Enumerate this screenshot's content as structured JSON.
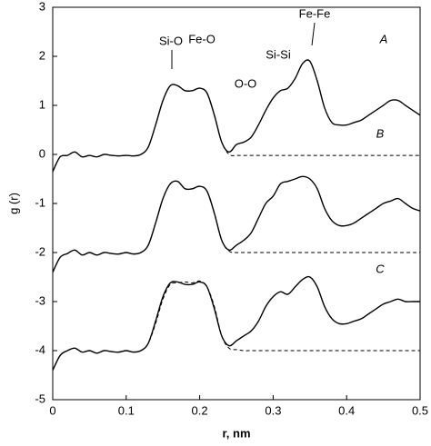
{
  "chart_data": {
    "type": "line",
    "ylabel": "g (r)",
    "xlabel": "r, nm",
    "xlim": [
      0,
      0.5
    ],
    "xticks": [
      0,
      0.1,
      0.2,
      0.3,
      0.4,
      0.5
    ],
    "ylim": [
      -5,
      3
    ],
    "yticks": [
      -5,
      -4,
      -3,
      -2,
      -1,
      0,
      1,
      2,
      3
    ],
    "annotations": [
      {
        "text": "Si-O"
      },
      {
        "text": "Fe-O"
      },
      {
        "text": "O-O"
      },
      {
        "text": "Si-Si"
      },
      {
        "text": "Fe-Fe"
      },
      {
        "text": "A"
      },
      {
        "text": "B"
      },
      {
        "text": "C"
      }
    ],
    "x": [
      0,
      0.01,
      0.02,
      0.03,
      0.04,
      0.05,
      0.06,
      0.07,
      0.08,
      0.09,
      0.1,
      0.11,
      0.12,
      0.13,
      0.14,
      0.15,
      0.16,
      0.17,
      0.18,
      0.19,
      0.2,
      0.21,
      0.22,
      0.23,
      0.24,
      0.25,
      0.26,
      0.27,
      0.28,
      0.29,
      0.3,
      0.31,
      0.32,
      0.33,
      0.34,
      0.35,
      0.36,
      0.37,
      0.38,
      0.39,
      0.4,
      0.41,
      0.42,
      0.43,
      0.44,
      0.45,
      0.46,
      0.47,
      0.48,
      0.49,
      0.5
    ],
    "series": [
      {
        "color": "#000000",
        "dashed": false,
        "values": [
          -0.35,
          -0.05,
          -0.02,
          0.05,
          -0.05,
          -0.02,
          -0.05,
          0,
          -0.02,
          -0.03,
          -0.02,
          -0.03,
          0,
          0.15,
          0.6,
          1.1,
          1.4,
          1.4,
          1.3,
          1.3,
          1.35,
          1.25,
          0.8,
          0.25,
          0.05,
          0.2,
          0.25,
          0.35,
          0.6,
          0.9,
          1.15,
          1.3,
          1.35,
          1.55,
          1.85,
          1.9,
          1.5,
          0.95,
          0.65,
          0.6,
          0.6,
          0.65,
          0.7,
          0.8,
          0.9,
          1.0,
          1.1,
          1.1,
          1.0,
          0.9,
          0.8
        ]
      },
      {
        "color": "#000000",
        "dashed": true,
        "values": [
          -0.35,
          -0.05,
          -0.02,
          0.05,
          -0.05,
          -0.02,
          -0.05,
          0,
          -0.02,
          -0.03,
          -0.02,
          -0.03,
          0,
          0.15,
          0.6,
          1.1,
          1.4,
          1.4,
          1.3,
          1.3,
          1.35,
          1.25,
          0.8,
          0.25,
          0,
          -0.02,
          -0.02,
          -0.02,
          -0.02,
          -0.02,
          -0.02,
          -0.02,
          -0.02,
          -0.02,
          -0.02,
          -0.02,
          -0.02,
          -0.02,
          -0.02,
          -0.02,
          -0.02,
          -0.02,
          -0.02,
          -0.02,
          -0.02,
          -0.02,
          -0.02,
          -0.02,
          -0.02,
          -0.02,
          -0.02
        ]
      },
      {
        "color": "#000000",
        "dashed": false,
        "values": [
          -2.4,
          -2.1,
          -2.02,
          -1.95,
          -2.05,
          -2.0,
          -2.05,
          -2.0,
          -2.02,
          -2.03,
          -2.0,
          -2.03,
          -2.0,
          -1.85,
          -1.4,
          -0.9,
          -0.6,
          -0.55,
          -0.7,
          -0.7,
          -0.65,
          -0.75,
          -1.2,
          -1.75,
          -1.95,
          -1.85,
          -1.75,
          -1.6,
          -1.3,
          -1.0,
          -0.85,
          -0.6,
          -0.55,
          -0.5,
          -0.45,
          -0.5,
          -0.7,
          -1.1,
          -1.35,
          -1.45,
          -1.45,
          -1.4,
          -1.3,
          -1.2,
          -1.1,
          -1.0,
          -0.95,
          -0.9,
          -1.0,
          -1.1,
          -1.15
        ]
      },
      {
        "color": "#000000",
        "dashed": true,
        "values": [
          -2.4,
          -2.1,
          -2.02,
          -1.95,
          -2.05,
          -2.0,
          -2.05,
          -2.0,
          -2.02,
          -2.03,
          -2.0,
          -2.03,
          -2.0,
          -1.85,
          -1.4,
          -0.9,
          -0.6,
          -0.55,
          -0.7,
          -0.7,
          -0.65,
          -0.75,
          -1.2,
          -1.75,
          -1.97,
          -2.0,
          -2.0,
          -2.0,
          -2.0,
          -2.0,
          -2.0,
          -2.0,
          -2.0,
          -2.0,
          -2.0,
          -2.0,
          -2.0,
          -2.0,
          -2.0,
          -2.0,
          -2.0,
          -2.0,
          -2.0,
          -2.0,
          -2.0,
          -2.0,
          -2.0,
          -2.0,
          -2.0,
          -2.0,
          -2.0
        ]
      },
      {
        "color": "#000000",
        "dashed": false,
        "values": [
          -4.4,
          -4.1,
          -4.0,
          -3.95,
          -4.03,
          -4.0,
          -4.05,
          -4.0,
          -4.02,
          -4.03,
          -4.0,
          -4.03,
          -4.0,
          -3.85,
          -3.4,
          -2.9,
          -2.62,
          -2.6,
          -2.65,
          -2.65,
          -2.6,
          -2.7,
          -3.15,
          -3.7,
          -3.9,
          -3.8,
          -3.7,
          -3.6,
          -3.4,
          -3.1,
          -2.9,
          -2.8,
          -2.85,
          -2.7,
          -2.55,
          -2.5,
          -2.7,
          -3.1,
          -3.35,
          -3.45,
          -3.45,
          -3.4,
          -3.35,
          -3.25,
          -3.15,
          -3.05,
          -3.0,
          -2.95,
          -3.0,
          -3.0,
          -3.0
        ]
      },
      {
        "color": "#000000",
        "dashed": true,
        "values": [
          -4.4,
          -4.1,
          -4.0,
          -3.95,
          -4.03,
          -4.0,
          -4.05,
          -4.0,
          -4.02,
          -4.03,
          -4.0,
          -4.03,
          -4.0,
          -3.85,
          -3.45,
          -2.95,
          -2.65,
          -2.62,
          -2.6,
          -2.62,
          -2.58,
          -2.7,
          -3.1,
          -3.7,
          -3.95,
          -3.98,
          -4.0,
          -4.0,
          -4.0,
          -4.0,
          -4.0,
          -4.0,
          -4.0,
          -4.0,
          -4.0,
          -4.0,
          -4.0,
          -4.0,
          -4.0,
          -4.0,
          -4.0,
          -4.0,
          -4.0,
          -4.0,
          -4.0,
          -4.0,
          -4.0,
          -4.0,
          -4.0,
          -4.0,
          -4.0
        ]
      }
    ]
  }
}
